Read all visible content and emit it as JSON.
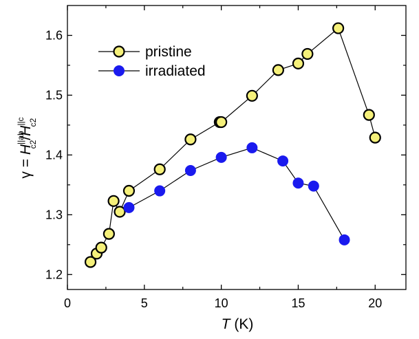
{
  "chart_data": {
    "type": "line",
    "xlabel_var": "T",
    "xlabel_unit": " (K)",
    "ylabel": {
      "prefix": "γ = ",
      "numerator_var": "H",
      "numerator_sub": "c2",
      "numerator_sup": "||ab",
      "slash": "/",
      "denominator_var": "H",
      "denominator_sub": "c2",
      "denominator_sup": "||c"
    },
    "xlim": [
      0,
      22
    ],
    "ylim": [
      1.175,
      1.65
    ],
    "xticks": [
      0,
      5,
      10,
      15,
      20
    ],
    "yticks": [
      1.2,
      1.3,
      1.4,
      1.5,
      1.6
    ],
    "xtick_labels": [
      "0",
      "5",
      "10",
      "15",
      "20"
    ],
    "ytick_labels": [
      "1.2",
      "1.3",
      "1.4",
      "1.5",
      "1.6"
    ],
    "legend_position": "top-left",
    "series": [
      {
        "name": "pristine",
        "marker_fill": "#f5f07a",
        "marker_edge": "#000000",
        "x": [
          1.5,
          1.9,
          2.2,
          2.7,
          3.0,
          3.4,
          4.0,
          6.0,
          8.0,
          9.9,
          10.0,
          12.0,
          13.7,
          15.0,
          15.6,
          17.6,
          19.6,
          20.0
        ],
        "y": [
          1.221,
          1.235,
          1.245,
          1.268,
          1.323,
          1.305,
          1.34,
          1.376,
          1.426,
          1.455,
          1.455,
          1.499,
          1.542,
          1.553,
          1.569,
          1.612,
          1.467,
          1.429
        ]
      },
      {
        "name": "irradiated",
        "marker_fill": "#1a1aee",
        "marker_edge": "#1a1aee",
        "x": [
          4.0,
          6.0,
          8.0,
          10.0,
          12.0,
          14.0,
          15.0,
          16.0,
          18.0
        ],
        "y": [
          1.312,
          1.34,
          1.374,
          1.396,
          1.412,
          1.39,
          1.353,
          1.348,
          1.258
        ]
      }
    ]
  }
}
